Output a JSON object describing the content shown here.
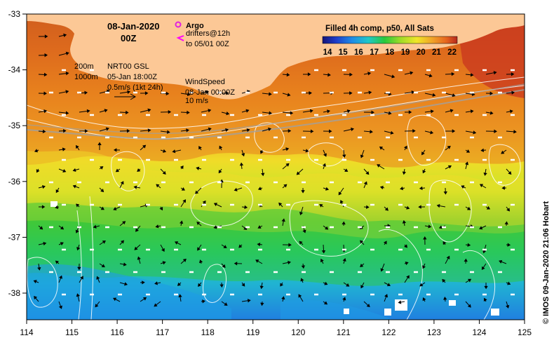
{
  "date_title": "08-Jan-2020",
  "time_title": "00Z",
  "argo_label": "Argo",
  "drifters_label": "drifters@12h",
  "drifters_to": "to 05/01 00Z",
  "colorbar": {
    "title": "Filled 4h comp, p50, All Sats",
    "ticks": [
      "14",
      "15",
      "16",
      "17",
      "18",
      "19",
      "20",
      "21",
      "22"
    ],
    "colors": [
      "#1a1a8c",
      "#1f4fd6",
      "#1fa0e6",
      "#22c8a0",
      "#28c83c",
      "#a8dc28",
      "#f0e628",
      "#f0aa28",
      "#e66a1e",
      "#c8321e"
    ]
  },
  "contours": {
    "c200": "200m",
    "c1000": "1000m"
  },
  "gsl": {
    "line1": "NRT00 GSL",
    "line2": "05-Jan 18:00Z",
    "line3": "0.5m/s (1kt 24h)"
  },
  "wind": {
    "line1": "WindSpeed",
    "line2": "08-Jan 00:00Z",
    "line3": "10 m/s"
  },
  "axes": {
    "x_ticks": [
      "114",
      "115",
      "116",
      "117",
      "118",
      "119",
      "120",
      "121",
      "122",
      "123",
      "124",
      "125"
    ],
    "y_ticks": [
      "-33",
      "-34",
      "-35",
      "-36",
      "-37",
      "-38"
    ]
  },
  "copyright": "© IMOS 09-Jan-2020 21:06 Hobart",
  "colors": {
    "land": "#fcc896",
    "argo": "#e020e0",
    "drifter": "#ff00ff"
  }
}
